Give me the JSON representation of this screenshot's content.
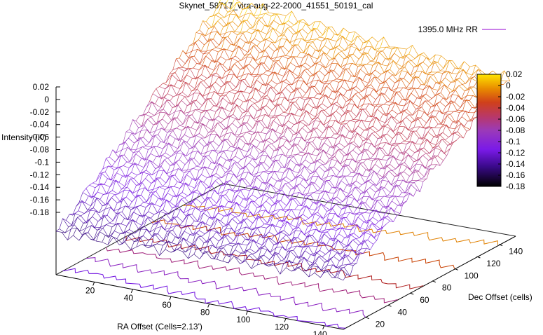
{
  "chart_data": {
    "type": "surface",
    "title": "Skynet_58717_vira-aug-22-2000_41551_50191_cal",
    "xlabel": "RA Offset (Cells=2.13')",
    "ylabel": "Dec Offset (cells)",
    "zlabel": "Intensity (K)",
    "xlim": [
      0,
      150
    ],
    "ylim": [
      0,
      150
    ],
    "zlim": [
      -0.18,
      0.02
    ],
    "x_ticks": [
      "20",
      "40",
      "60",
      "80",
      "100",
      "120",
      "140"
    ],
    "y_ticks": [
      "20",
      "40",
      "60",
      "80",
      "100",
      "120",
      "140"
    ],
    "z_ticks": [
      "0.02",
      "0",
      "-0.02",
      "-0.04",
      "-0.06",
      "-0.08",
      "-0.1",
      "-0.12",
      "-0.14",
      "-0.16",
      "-0.18"
    ],
    "colorbar_ticks": [
      "0.02",
      "0",
      "-0.02",
      "-0.04",
      "-0.06",
      "-0.08",
      "-0.1",
      "-0.12",
      "-0.14",
      "-0.16",
      "-0.18"
    ],
    "colorbar_range": [
      -0.18,
      0.02
    ],
    "series": [
      {
        "name": "1395.0 MHz RR",
        "color": "#9400d3"
      }
    ],
    "surface": {
      "x_range": [
        0,
        150
      ],
      "y_range": [
        0,
        150
      ],
      "z_at_corners": {
        "x0_y0": -0.152,
        "x150_y0": -0.14,
        "x0_y150": 0.018,
        "x150_y150": -0.012
      },
      "note_values": [
        -0.152,
        -0.14,
        0.018,
        -0.012
      ]
    },
    "contours": [
      {
        "level": -0.02,
        "color": "#e08000"
      },
      {
        "level": -0.05,
        "color": "#c84000"
      },
      {
        "level": -0.08,
        "color": "#b02020"
      },
      {
        "level": -0.1,
        "color": "#a0207a"
      },
      {
        "level": -0.12,
        "color": "#8a20c0"
      },
      {
        "level": -0.14,
        "color": "#7010e0"
      }
    ],
    "legend_position": "top-right",
    "grid": false
  }
}
